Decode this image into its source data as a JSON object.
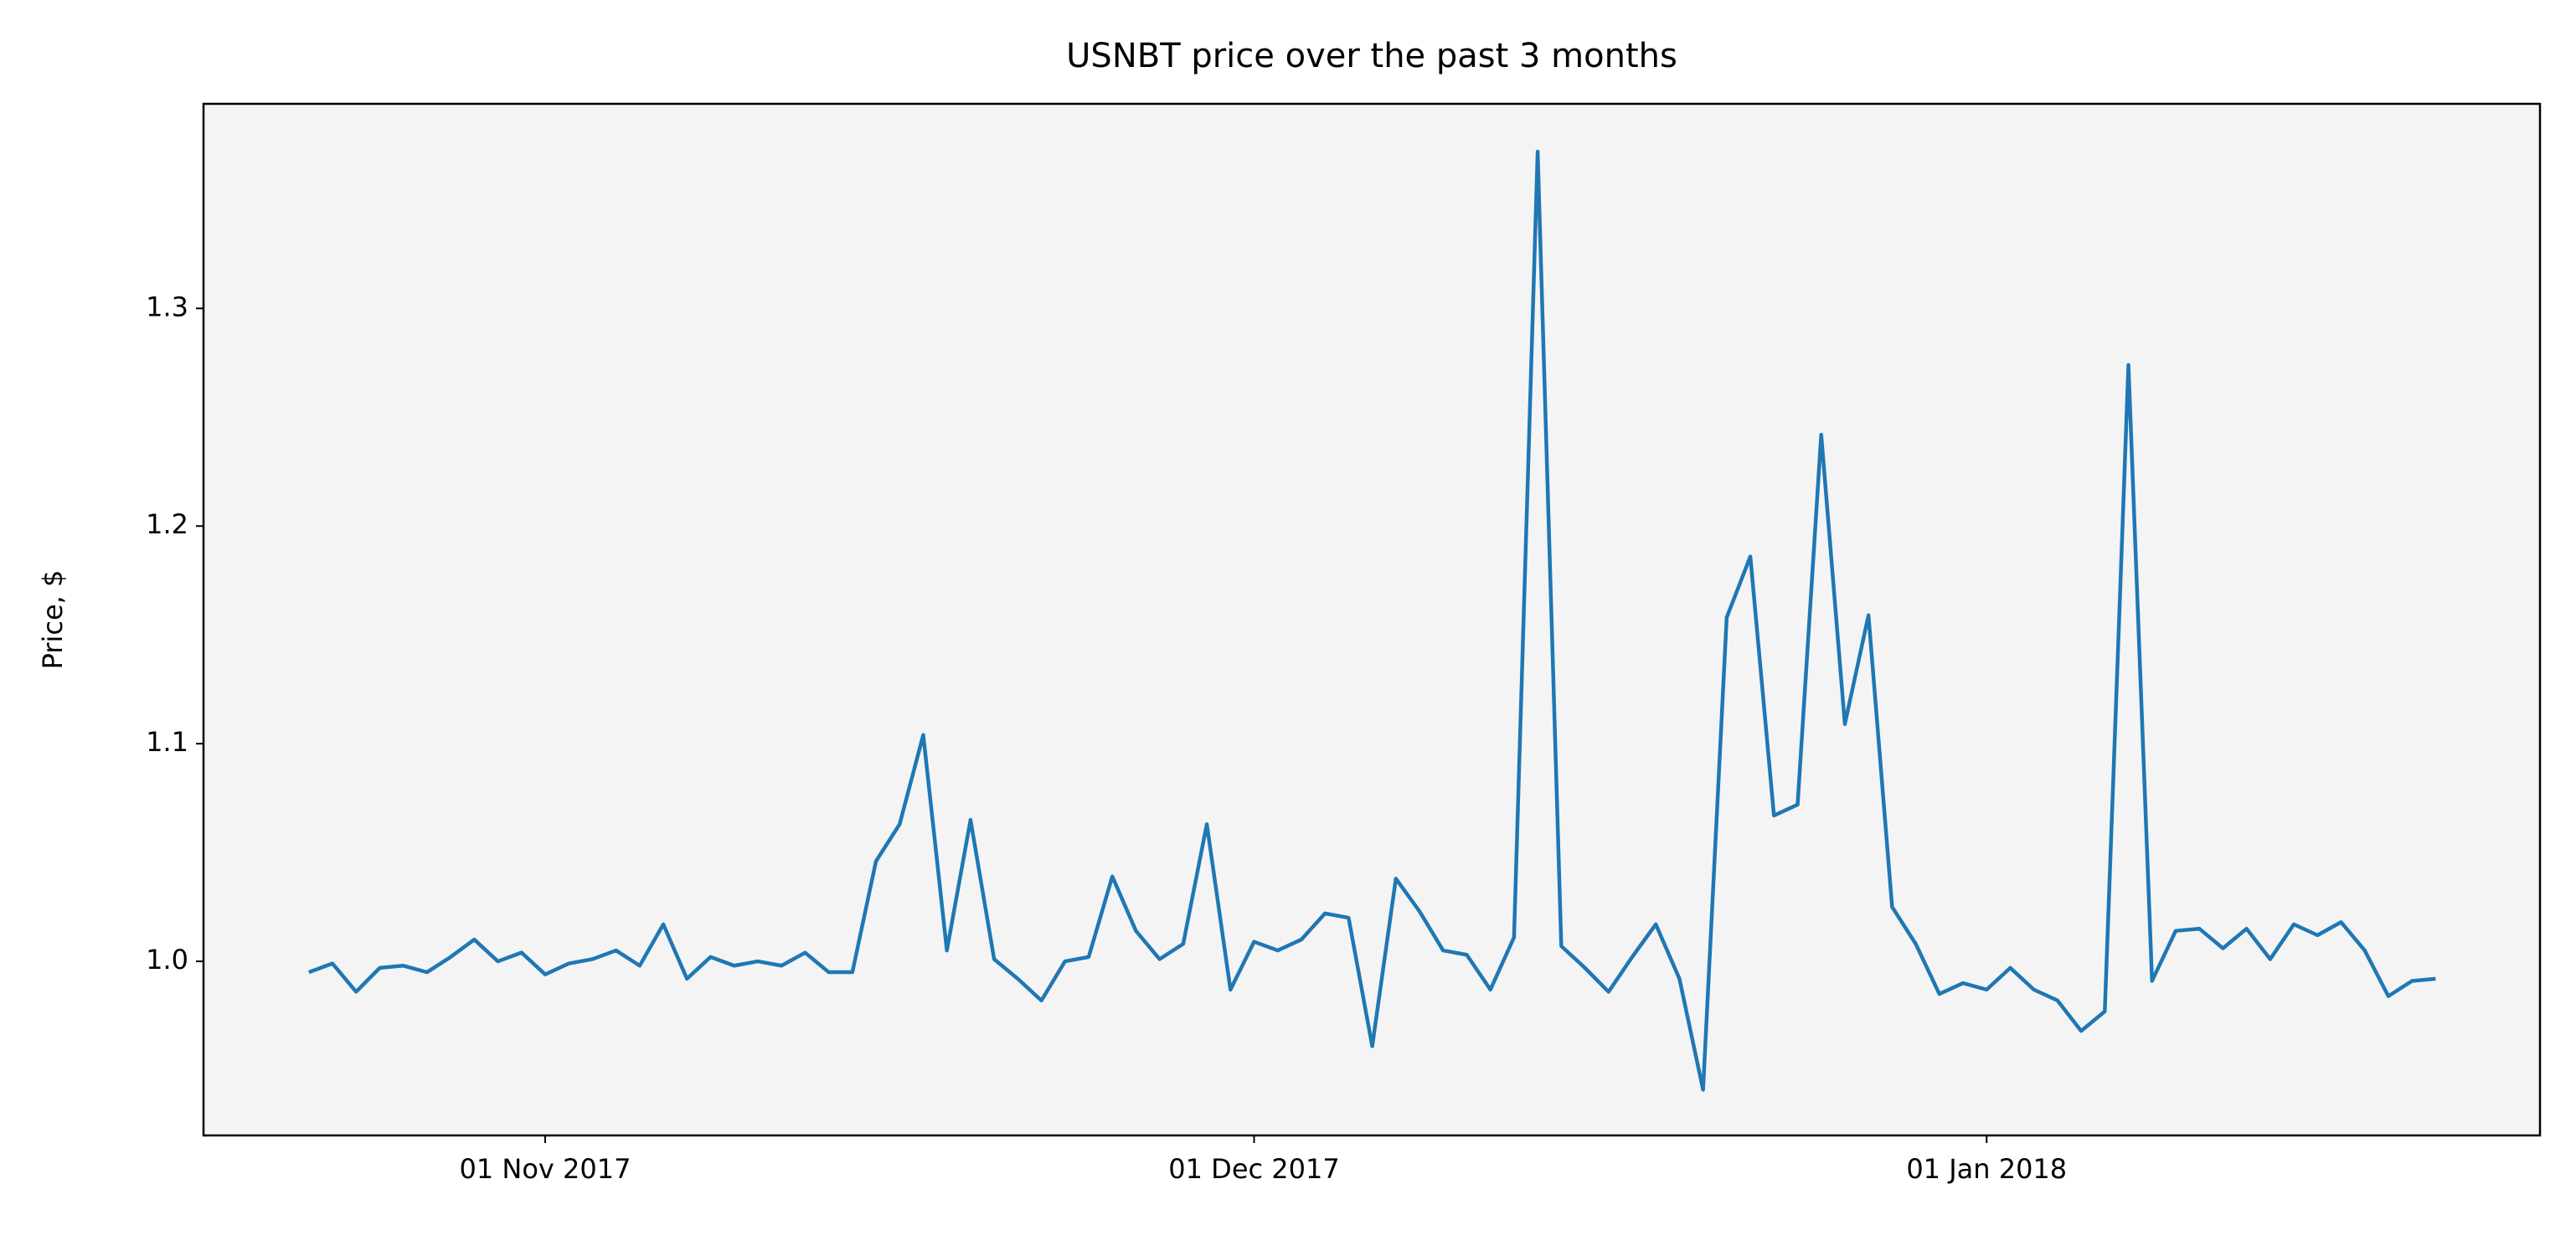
{
  "chart_data": {
    "type": "line",
    "title": "USNBT price over the past 3 months",
    "y_label": "Price, $",
    "x": [
      "2017-10-22",
      "2017-10-23",
      "2017-10-24",
      "2017-10-25",
      "2017-10-26",
      "2017-10-27",
      "2017-10-28",
      "2017-10-29",
      "2017-10-30",
      "2017-10-31",
      "2017-11-01",
      "2017-11-02",
      "2017-11-03",
      "2017-11-04",
      "2017-11-05",
      "2017-11-06",
      "2017-11-07",
      "2017-11-08",
      "2017-11-09",
      "2017-11-10",
      "2017-11-11",
      "2017-11-12",
      "2017-11-13",
      "2017-11-14",
      "2017-11-15",
      "2017-11-16",
      "2017-11-17",
      "2017-11-18",
      "2017-11-19",
      "2017-11-20",
      "2017-11-21",
      "2017-11-22",
      "2017-11-23",
      "2017-11-24",
      "2017-11-25",
      "2017-11-26",
      "2017-11-27",
      "2017-11-28",
      "2017-11-29",
      "2017-11-30",
      "2017-12-01",
      "2017-12-02",
      "2017-12-03",
      "2017-12-04",
      "2017-12-05",
      "2017-12-06",
      "2017-12-07",
      "2017-12-08",
      "2017-12-09",
      "2017-12-10",
      "2017-12-11",
      "2017-12-12",
      "2017-12-13",
      "2017-12-14",
      "2017-12-15",
      "2017-12-16",
      "2017-12-17",
      "2017-12-18",
      "2017-12-19",
      "2017-12-20",
      "2017-12-21",
      "2017-12-22",
      "2017-12-23",
      "2017-12-24",
      "2017-12-25",
      "2017-12-26",
      "2017-12-27",
      "2017-12-28",
      "2017-12-29",
      "2017-12-30",
      "2017-12-31",
      "2018-01-01",
      "2018-01-02",
      "2018-01-03",
      "2018-01-04",
      "2018-01-05",
      "2018-01-06",
      "2018-01-07",
      "2018-01-08",
      "2018-01-09",
      "2018-01-10",
      "2018-01-11",
      "2018-01-12",
      "2018-01-13",
      "2018-01-14",
      "2018-01-15",
      "2018-01-16",
      "2018-01-17",
      "2018-01-18",
      "2018-01-19",
      "2018-01-20"
    ],
    "series": [
      {
        "name": "USNBT",
        "color": "#1f77b4",
        "values": [
          0.995,
          0.999,
          0.986,
          0.997,
          0.998,
          0.995,
          1.002,
          1.01,
          1.0,
          1.004,
          0.994,
          0.999,
          1.001,
          1.005,
          0.998,
          1.017,
          0.992,
          1.002,
          0.998,
          1.0,
          0.998,
          1.004,
          0.995,
          0.995,
          1.046,
          1.063,
          1.104,
          1.005,
          1.065,
          1.001,
          0.992,
          0.982,
          1.0,
          1.002,
          1.039,
          1.014,
          1.001,
          1.008,
          1.063,
          0.987,
          1.009,
          1.005,
          1.01,
          1.022,
          1.02,
          0.961,
          1.038,
          1.023,
          1.005,
          1.003,
          0.987,
          1.011,
          1.372,
          1.007,
          0.997,
          0.986,
          1.002,
          1.017,
          0.992,
          0.941,
          1.158,
          1.186,
          1.067,
          1.072,
          1.242,
          1.109,
          1.159,
          1.025,
          1.008,
          0.985,
          0.99,
          0.987,
          0.997,
          0.987,
          0.982,
          0.968,
          0.977,
          1.274,
          0.991,
          1.014,
          1.015,
          1.006,
          1.015,
          1.001,
          1.017,
          1.012,
          1.018,
          1.005,
          0.984,
          0.991,
          0.992
        ]
      }
    ],
    "xlim": [
      "2017-10-17T13:00",
      "2018-01-24T10:00"
    ],
    "xticks": [
      {
        "value": "2017-11-01",
        "label": "01 Nov 2017"
      },
      {
        "value": "2017-12-01",
        "label": "01 Dec 2017"
      },
      {
        "value": "2018-01-01",
        "label": "01 Jan 2018"
      }
    ],
    "ylim": [
      0.92,
      1.394
    ],
    "yticks": [
      {
        "value": 1,
        "label": "1.0"
      },
      1.1,
      1.2,
      1.3
    ],
    "background": "#f4f4f4"
  }
}
